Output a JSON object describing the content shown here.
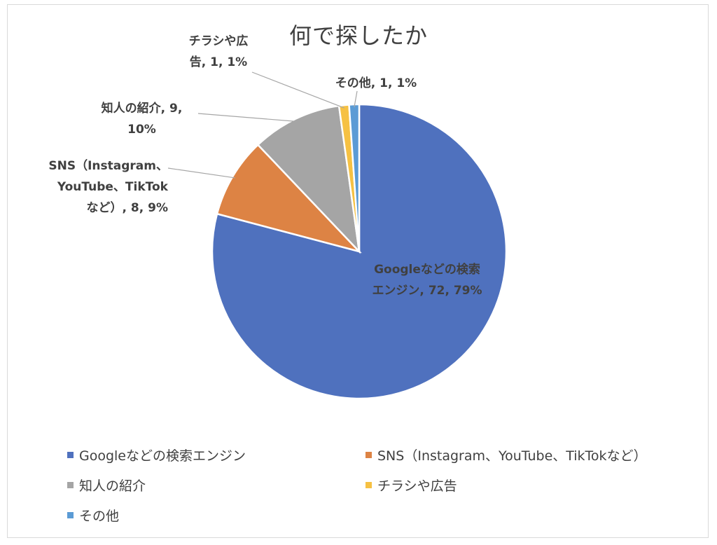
{
  "chart_data": {
    "type": "pie",
    "title": "何で探したか",
    "categories": [
      "Googleなどの検索エンジン",
      "SNS（Instagram、YouTube、TikTokなど）",
      "知人の紹介",
      "チラシや広告",
      "その他"
    ],
    "values": [
      72,
      8,
      9,
      1,
      1
    ],
    "percent_labels": [
      "79%",
      "9%",
      "10%",
      "1%",
      "1%"
    ],
    "colors": [
      "#4f71be",
      "#dd8344",
      "#a5a5a5",
      "#f6c143",
      "#5b9bd5"
    ],
    "data_labels": [
      [
        "Googleなどの検索",
        "エンジン, 72, 79%"
      ],
      [
        "SNS（Instagram、",
        "YouTube、TikTok",
        "など）, 8, 9%"
      ],
      [
        "知人の紹介, 9,",
        "10%"
      ],
      [
        "チラシや広",
        "告, 1, 1%"
      ],
      [
        "その他, 1, 1%"
      ]
    ],
    "legend_position": "bottom"
  }
}
